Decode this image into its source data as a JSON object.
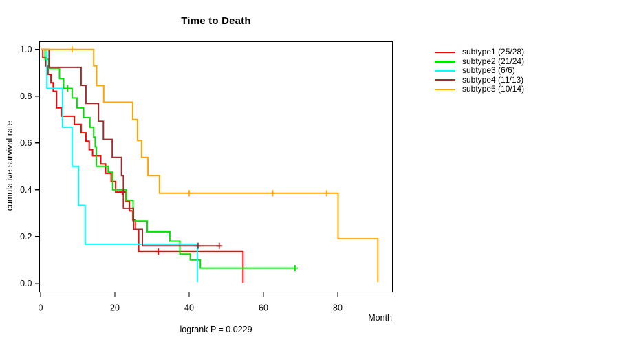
{
  "window": {
    "background": "#ffffff"
  },
  "chart_data": {
    "type": "line",
    "subtype": "kaplan-meier-step",
    "title": "Time to Death",
    "xlabel": "Month",
    "ylabel": "cumulative survival rate",
    "annotation": "logrank P = 0.0229",
    "x_ticks": [
      0,
      20,
      40,
      60,
      80
    ],
    "y_tick_labels": [
      "0.0",
      "0.2",
      "0.4",
      "0.6",
      "0.8",
      "1.0"
    ],
    "y_tick_values": [
      0.0,
      0.2,
      0.4,
      0.6,
      0.8,
      1.0
    ],
    "xlim": [
      0,
      95
    ],
    "ylim": [
      0,
      1
    ],
    "grid": false,
    "legend_position": "right-outside",
    "series": [
      {
        "name": "subtype1 (25/28)",
        "color": "#FF0000",
        "end": 54.5,
        "steps": [
          [
            0,
            1.0
          ],
          [
            0.6,
            0.964
          ],
          [
            1.4,
            0.929
          ],
          [
            2.0,
            0.893
          ],
          [
            2.8,
            0.857
          ],
          [
            3.4,
            0.821
          ],
          [
            4.3,
            0.75
          ],
          [
            5.6,
            0.714
          ],
          [
            9.1,
            0.679
          ],
          [
            10.9,
            0.643
          ],
          [
            12.2,
            0.607
          ],
          [
            13.1,
            0.571
          ],
          [
            14.0,
            0.545
          ],
          [
            16.2,
            0.51
          ],
          [
            17.5,
            0.47
          ],
          [
            19.0,
            0.435
          ],
          [
            20.2,
            0.39
          ],
          [
            23.0,
            0.35
          ],
          [
            23.9,
            0.31
          ],
          [
            24.8,
            0.27
          ],
          [
            25.5,
            0.23
          ],
          [
            26.4,
            0.135
          ],
          [
            54.5,
            0.0
          ]
        ],
        "censors": [
          [
            15.0,
            0.545
          ],
          [
            22.0,
            0.39
          ],
          [
            31.7,
            0.135
          ]
        ]
      },
      {
        "name": "subtype2 (21/24)",
        "color": "#00E300",
        "end": 68.5,
        "steps": [
          [
            0,
            1.0
          ],
          [
            1.2,
            0.958
          ],
          [
            2.2,
            0.917
          ],
          [
            5.1,
            0.875
          ],
          [
            6.2,
            0.833
          ],
          [
            8.5,
            0.792
          ],
          [
            9.8,
            0.75
          ],
          [
            11.6,
            0.708
          ],
          [
            13.3,
            0.667
          ],
          [
            14.3,
            0.625
          ],
          [
            14.7,
            0.583
          ],
          [
            15.0,
            0.5
          ],
          [
            18.2,
            0.475
          ],
          [
            19.4,
            0.4
          ],
          [
            23.1,
            0.354
          ],
          [
            24.9,
            0.266
          ],
          [
            28.7,
            0.22
          ],
          [
            34.8,
            0.18
          ],
          [
            37.5,
            0.125
          ],
          [
            40.3,
            0.1
          ],
          [
            43.0,
            0.065
          ]
        ],
        "censors": [
          [
            7.3,
            0.833
          ],
          [
            68.5,
            0.065
          ]
        ]
      },
      {
        "name": "subtype3 (6/6)",
        "color": "#00FFFF",
        "end": 42.2,
        "steps": [
          [
            0,
            1.0
          ],
          [
            1.7,
            0.833
          ],
          [
            5.9,
            0.667
          ],
          [
            8.5,
            0.5
          ],
          [
            10.2,
            0.333
          ],
          [
            12.0,
            0.167
          ],
          [
            42.2,
            0.004
          ]
        ],
        "censors": []
      },
      {
        "name": "subtype4 (11/13)",
        "color": "#A02C2C",
        "end": 48.7,
        "steps": [
          [
            0,
            1.0
          ],
          [
            2.3,
            0.923
          ],
          [
            10.9,
            0.846
          ],
          [
            12.2,
            0.769
          ],
          [
            15.6,
            0.692
          ],
          [
            16.9,
            0.615
          ],
          [
            19.3,
            0.538
          ],
          [
            21.8,
            0.46
          ],
          [
            22.3,
            0.32
          ],
          [
            25.0,
            0.23
          ],
          [
            27.4,
            0.16
          ]
        ],
        "censors": [
          [
            42.4,
            0.16
          ],
          [
            48.1,
            0.16
          ]
        ]
      },
      {
        "name": "subtype5 (10/14)",
        "color": "#FFA500",
        "end": 90.8,
        "steps": [
          [
            0,
            1.0
          ],
          [
            14.3,
            0.929
          ],
          [
            15.1,
            0.845
          ],
          [
            17.0,
            0.774
          ],
          [
            24.8,
            0.7
          ],
          [
            26.1,
            0.61
          ],
          [
            27.2,
            0.538
          ],
          [
            28.9,
            0.46
          ],
          [
            32.0,
            0.385
          ],
          [
            80.1,
            0.19
          ],
          [
            90.8,
            0.004
          ]
        ],
        "censors": [
          [
            8.5,
            1.0
          ],
          [
            40.0,
            0.385
          ],
          [
            62.5,
            0.385
          ],
          [
            77.0,
            0.385
          ]
        ]
      }
    ]
  }
}
